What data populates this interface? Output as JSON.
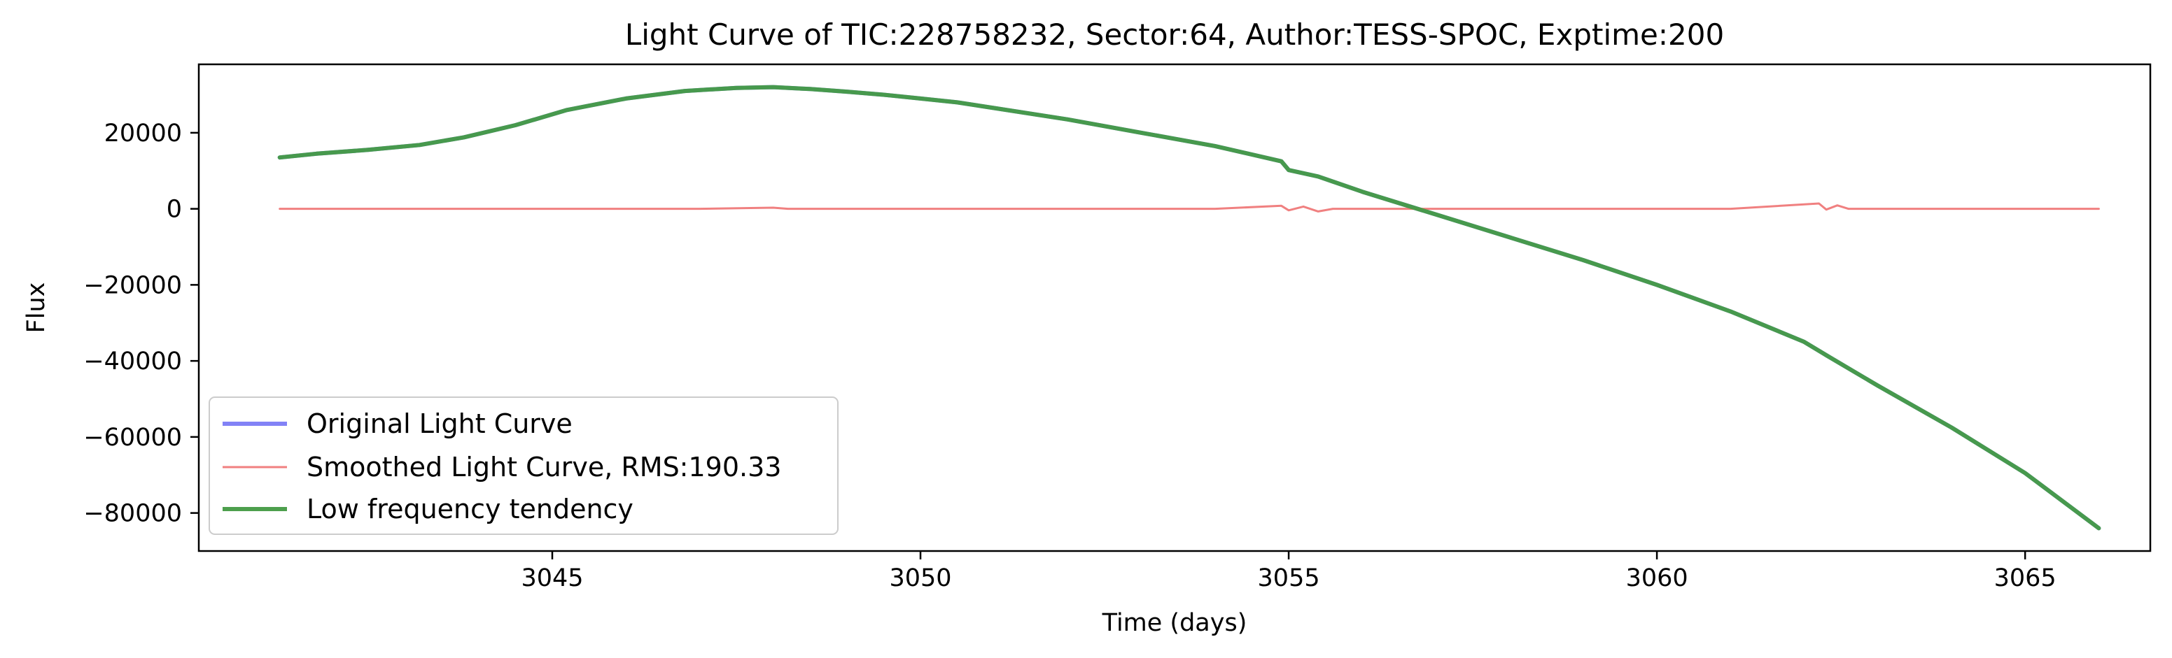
{
  "chart_data": {
    "type": "line",
    "title": "Light Curve of TIC:228758232, Sector:64, Author:TESS-SPOC, Exptime:200",
    "xlabel": "Time (days)",
    "ylabel": "Flux",
    "xlim": [
      3040.2,
      3066.7
    ],
    "ylim": [
      -90000,
      38000
    ],
    "x_ticks": [
      3045,
      3050,
      3055,
      3060,
      3065
    ],
    "x_tick_labels": [
      "3045",
      "3050",
      "3055",
      "3060",
      "3065"
    ],
    "y_ticks": [
      20000,
      0,
      -20000,
      -40000,
      -60000,
      -80000
    ],
    "y_tick_labels": [
      "20000",
      "0",
      "−20000",
      "−40000",
      "−60000",
      "−80000"
    ],
    "grid": false,
    "legend_position": "lower-left",
    "rms": 190.33,
    "series": [
      {
        "name": "Original Light Curve",
        "color": "#7b7bf5",
        "x": [
          3041.3,
          3041.8,
          3042.5,
          3043.2,
          3043.8,
          3044.5,
          3045.2,
          3046.0,
          3046.8,
          3047.5,
          3048.0,
          3048.5,
          3049.0,
          3049.5,
          3050.0,
          3050.5,
          3051.0,
          3052.0,
          3053.0,
          3054.0,
          3054.9,
          3055.0,
          3055.4,
          3056.0,
          3057.0,
          3058.0,
          3059.0,
          3060.0,
          3061.0,
          3062.0,
          3062.3,
          3063.0,
          3064.0,
          3065.0,
          3066.0
        ],
        "y": [
          13500,
          14500,
          15500,
          16800,
          18800,
          22000,
          26000,
          29000,
          31000,
          31800,
          32000,
          31500,
          30800,
          30000,
          29000,
          28000,
          26500,
          23500,
          20000,
          16500,
          12500,
          10200,
          8500,
          4500,
          -1500,
          -7500,
          -13500,
          -20000,
          -27000,
          -35000,
          -38500,
          -46500,
          -57500,
          -69500,
          -84000
        ]
      },
      {
        "name": "Smoothed Light Curve, RMS:190.33",
        "color": "#f08080",
        "x": [
          3041.3,
          3043.0,
          3045.0,
          3047.0,
          3048.0,
          3048.2,
          3048.4,
          3050.0,
          3052.0,
          3054.0,
          3054.9,
          3055.0,
          3055.2,
          3055.4,
          3055.6,
          3057.0,
          3059.0,
          3061.0,
          3062.2,
          3062.3,
          3062.45,
          3062.6,
          3064.0,
          3066.0
        ],
        "y": [
          0,
          0,
          0,
          0,
          300,
          0,
          0,
          0,
          0,
          0,
          800,
          -400,
          600,
          -700,
          0,
          0,
          0,
          0,
          1400,
          -200,
          900,
          0,
          0,
          0
        ]
      },
      {
        "name": "Low frequency tendency",
        "color": "#439a43",
        "x": [
          3041.3,
          3041.8,
          3042.5,
          3043.2,
          3043.8,
          3044.5,
          3045.2,
          3046.0,
          3046.8,
          3047.5,
          3048.0,
          3048.5,
          3049.0,
          3049.5,
          3050.0,
          3050.5,
          3051.0,
          3052.0,
          3053.0,
          3054.0,
          3054.9,
          3055.0,
          3055.4,
          3056.0,
          3057.0,
          3058.0,
          3059.0,
          3060.0,
          3061.0,
          3062.0,
          3062.3,
          3063.0,
          3064.0,
          3065.0,
          3066.0
        ],
        "y": [
          13500,
          14500,
          15500,
          16800,
          18800,
          22000,
          26000,
          29000,
          31000,
          31800,
          32000,
          31500,
          30800,
          30000,
          29000,
          28000,
          26500,
          23500,
          20000,
          16500,
          12500,
          10200,
          8500,
          4500,
          -1500,
          -7500,
          -13500,
          -20000,
          -27000,
          -35000,
          -38500,
          -46500,
          -57500,
          -69500,
          -84000
        ]
      }
    ]
  }
}
